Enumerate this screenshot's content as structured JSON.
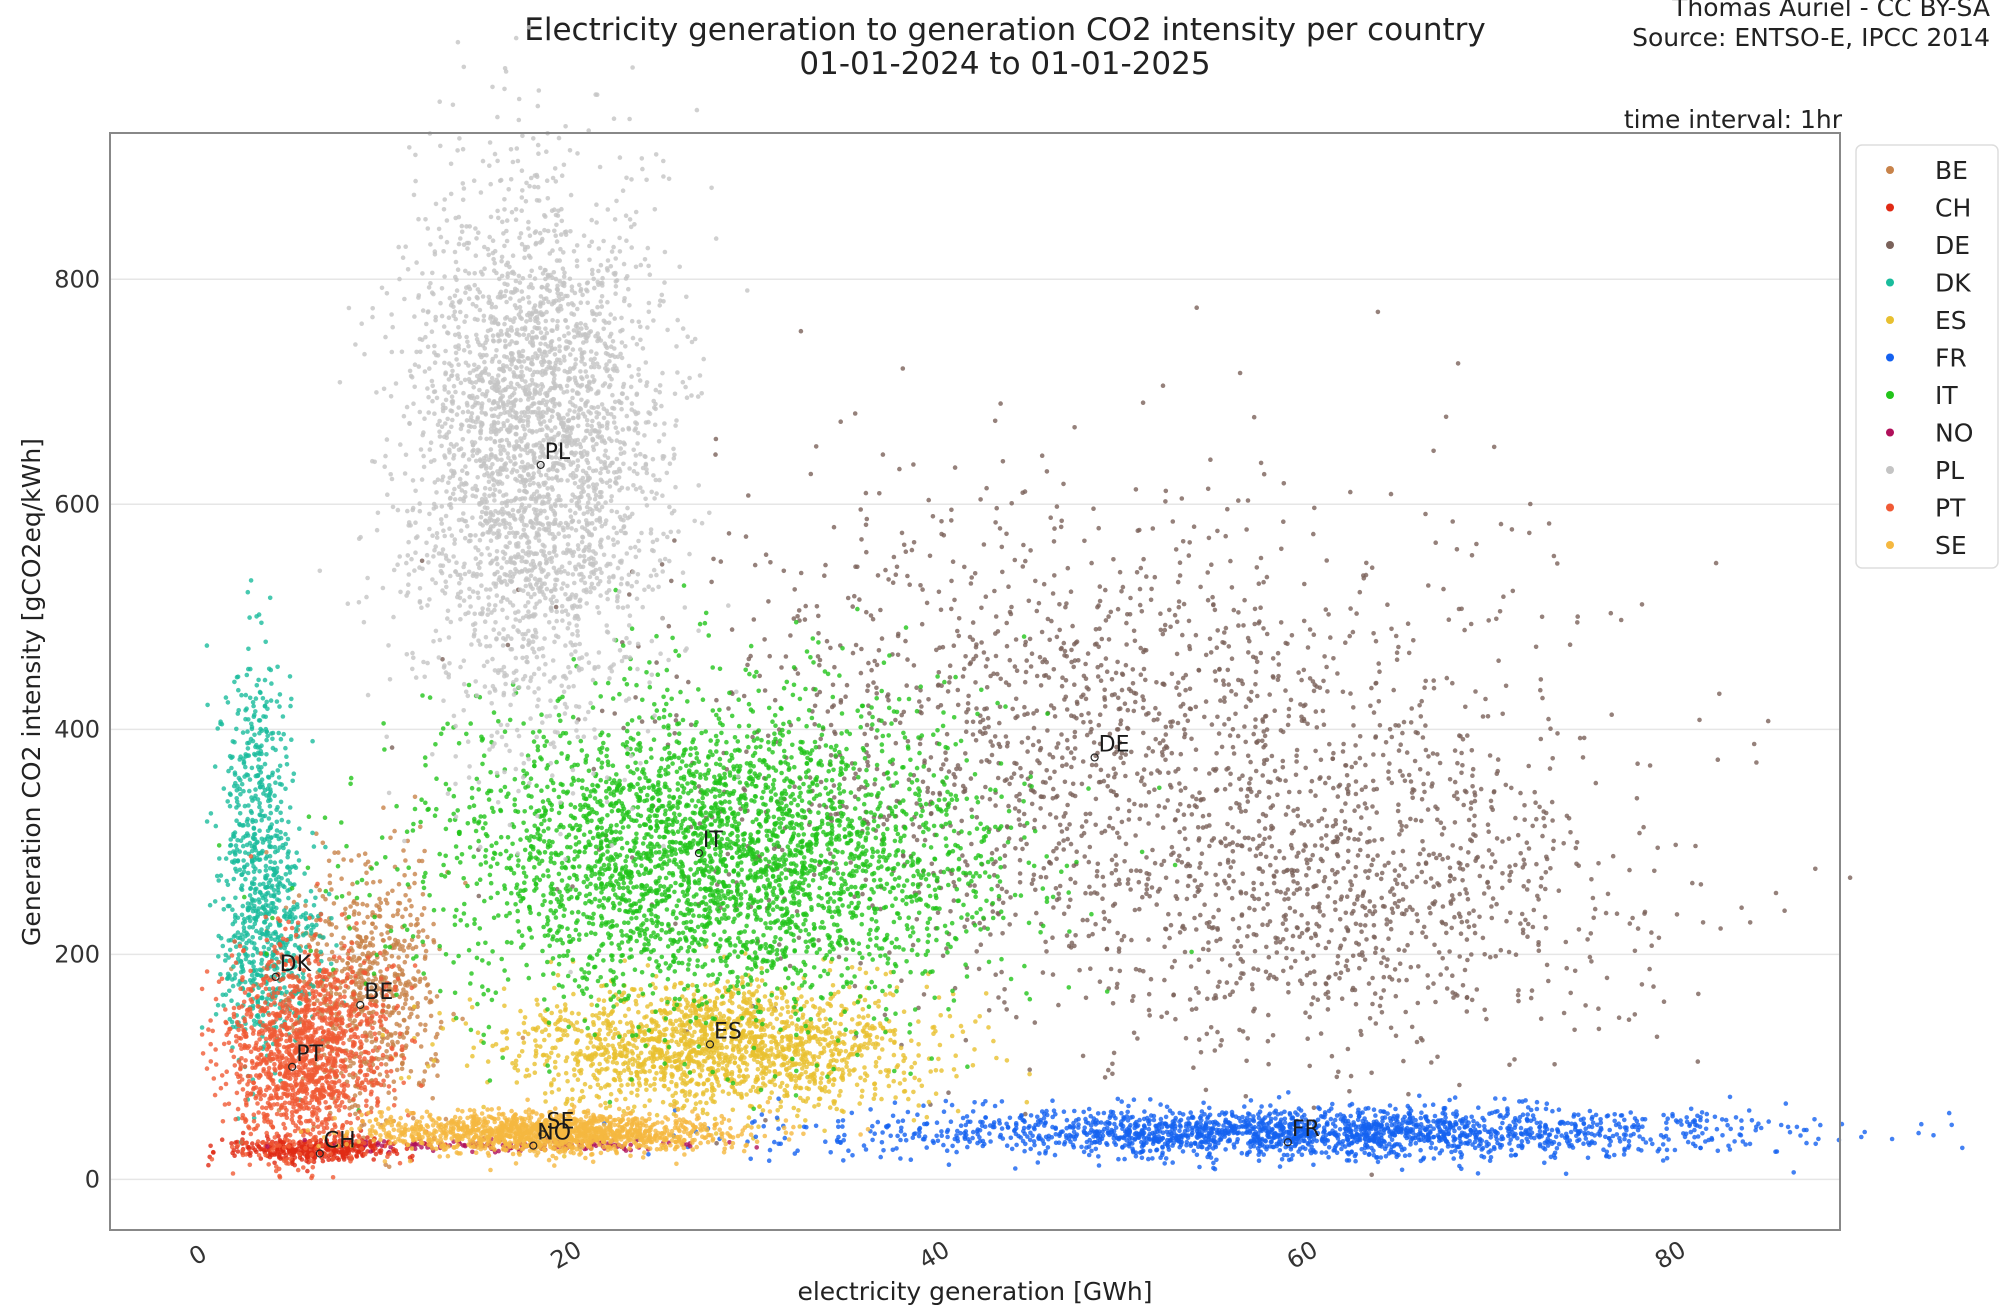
{
  "chart_data": {
    "type": "scatter",
    "title": "Electricity generation to generation CO2 intensity per country",
    "subtitle": "01-01-2024 to 01-01-2025",
    "credit_line1": "Thomas Auriel - CC BY-SA",
    "credit_line2": "Source: ENTSO-E, IPCC 2014",
    "interval_note": "time interval: 1hr",
    "xlabel": "electricity generation [GWh]",
    "ylabel": "Generation CO2 intensity [gCO2eq/kWh]",
    "xlim": [
      -5,
      89
    ],
    "ylim": [
      -45,
      930
    ],
    "xticks": [
      0,
      20,
      40,
      60,
      80
    ],
    "yticks": [
      0,
      200,
      400,
      600,
      800
    ],
    "grid": "horizontal",
    "legend_position": "right",
    "series": [
      {
        "name": "BE",
        "color": "#c8834a",
        "centroid": [
          8.6,
          155
        ],
        "n": 700,
        "blobs": [
          {
            "cx": 9,
            "cy": 170,
            "sx": 2.0,
            "sy": 55,
            "w": 1
          }
        ]
      },
      {
        "name": "CH",
        "color": "#e02a14",
        "centroid": [
          6.4,
          23
        ],
        "n": 350,
        "blobs": [
          {
            "cx": 6,
            "cy": 27,
            "sx": 2.4,
            "sy": 5,
            "w": 1
          }
        ]
      },
      {
        "name": "DE",
        "color": "#7a625a",
        "centroid": [
          48.5,
          375
        ],
        "n": 2600,
        "blobs": [
          {
            "cx": 48,
            "cy": 390,
            "sx": 11.5,
            "sy": 115,
            "w": 1
          },
          {
            "cx": 63,
            "cy": 260,
            "sx": 8,
            "sy": 75,
            "w": 0.5
          }
        ]
      },
      {
        "name": "DK",
        "color": "#1abc9c",
        "centroid": [
          4,
          180
        ],
        "n": 900,
        "blobs": [
          {
            "cx": 3,
            "cy": 300,
            "sx": 1.0,
            "sy": 90,
            "w": 0.6
          },
          {
            "cx": 4,
            "cy": 210,
            "sx": 1.4,
            "sy": 45,
            "w": 0.4
          }
        ]
      },
      {
        "name": "ES",
        "color": "#e8c030",
        "centroid": [
          27.6,
          120
        ],
        "n": 1800,
        "blobs": [
          {
            "cx": 28,
            "cy": 118,
            "sx": 5.5,
            "sy": 28,
            "w": 1
          }
        ]
      },
      {
        "name": "FR",
        "color": "#1461f0",
        "centroid": [
          59,
          33
        ],
        "n": 2000,
        "blobs": [
          {
            "cx": 60,
            "cy": 42,
            "sx": 12,
            "sy": 11,
            "w": 1
          }
        ]
      },
      {
        "name": "IT",
        "color": "#22c41a",
        "centroid": [
          27,
          290
        ],
        "n": 3500,
        "blobs": [
          {
            "cx": 28,
            "cy": 285,
            "sx": 7.5,
            "sy": 68,
            "w": 1
          }
        ]
      },
      {
        "name": "NO",
        "color": "#b0105a",
        "centroid": [
          18,
          30
        ],
        "n": 160,
        "blobs": [
          {
            "cx": 18,
            "cy": 30,
            "sx": 4.5,
            "sy": 3,
            "w": 1
          }
        ]
      },
      {
        "name": "PL",
        "color": "#c4c4c4",
        "centroid": [
          18.4,
          635
        ],
        "n": 3000,
        "blobs": [
          {
            "cx": 18,
            "cy": 650,
            "sx": 3.4,
            "sy": 120,
            "w": 1
          }
        ]
      },
      {
        "name": "PT",
        "color": "#f05a35",
        "centroid": [
          4.9,
          100
        ],
        "n": 1400,
        "blobs": [
          {
            "cx": 5.5,
            "cy": 110,
            "sx": 2.2,
            "sy": 48,
            "w": 1
          }
        ]
      },
      {
        "name": "SE",
        "color": "#f5b840",
        "centroid": [
          18.5,
          40
        ],
        "n": 1400,
        "blobs": [
          {
            "cx": 19,
            "cy": 42,
            "sx": 4.8,
            "sy": 9,
            "w": 1
          }
        ]
      }
    ]
  }
}
